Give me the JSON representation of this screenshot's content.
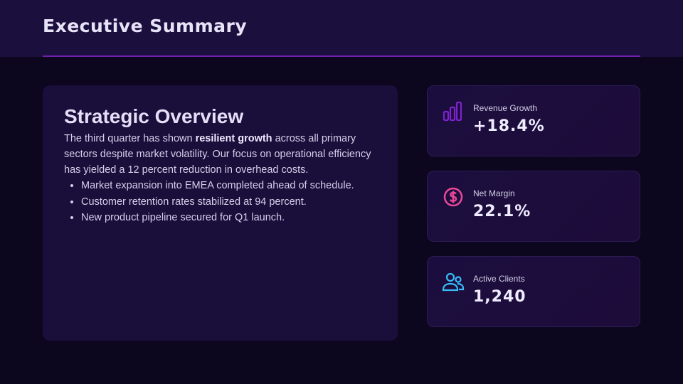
{
  "header": {
    "title": "Executive Summary"
  },
  "overview": {
    "title": "Strategic Overview",
    "intro_before": "The third quarter has shown ",
    "intro_bold": "resilient growth",
    "intro_after": " across all primary sectors despite market volatility. Our focus on operational efficiency has yielded a 12 percent reduction in overhead costs.",
    "bullets": [
      "Market expansion into EMEA completed ahead of schedule.",
      "Customer retention rates stabilized at 94 percent.",
      "New product pipeline secured for Q1 launch."
    ]
  },
  "metrics": [
    {
      "label": "Revenue Growth",
      "value": "+18.4%",
      "icon": "bar-chart-icon",
      "color": "#7e22ce"
    },
    {
      "label": "Net Margin",
      "value": "22.1%",
      "icon": "dollar-circle-icon",
      "color": "#ec4899"
    },
    {
      "label": "Active Clients",
      "value": "1,240",
      "icon": "users-icon",
      "color": "#38bdf8"
    }
  ]
}
